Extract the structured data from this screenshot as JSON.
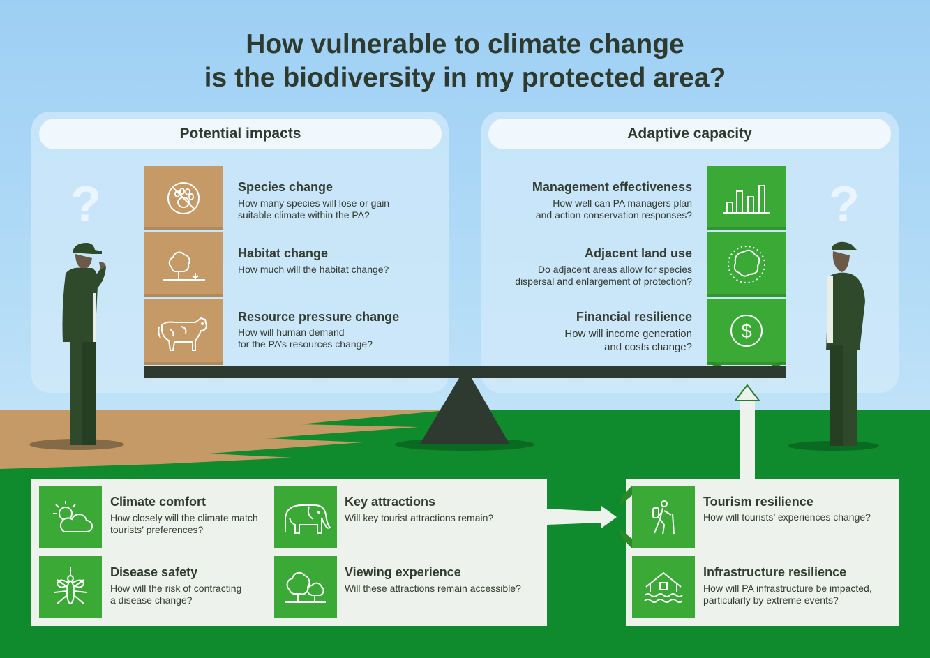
{
  "title": {
    "line1": "How vulnerable to climate change",
    "line2": "is the biodiversity in my protected area?"
  },
  "left_panel": {
    "heading": "Potential impacts",
    "items": [
      {
        "icon": "paw-prohibited-icon",
        "title": "Species change",
        "text1": "How many species will lose or gain",
        "text2": "suitable climate within the PA?"
      },
      {
        "icon": "tree-icon",
        "title": "Habitat change",
        "text1": "How much will the habitat change?",
        "text2": ""
      },
      {
        "icon": "cow-icon",
        "title": "Resource pressure change",
        "text1": "How will human demand",
        "text2": "for the PA’s resources change?"
      }
    ]
  },
  "right_panel": {
    "heading": "Adaptive capacity",
    "items": [
      {
        "icon": "bar-chart-icon",
        "title": "Management effectiveness",
        "text1": "How well can PA managers plan",
        "text2": "and action conservation responses?"
      },
      {
        "icon": "boundary-circle-icon",
        "title": "Adjacent land use",
        "text1": "Do adjacent areas allow for species",
        "text2": "dispersal and enlargement of protection?"
      },
      {
        "icon": "dollar-icon",
        "title": "Financial resilience",
        "text1": "How will income generation",
        "text2": "and costs change?"
      }
    ]
  },
  "question_marks": {
    "left": "?",
    "right": "?"
  },
  "tourism_panel": {
    "items": [
      {
        "icon": "sun-cloud-icon",
        "title": "Climate comfort",
        "text1": "How closely will the climate match",
        "text2": "tourists’ preferences?"
      },
      {
        "icon": "elephant-icon",
        "title": "Key attractions",
        "text1": "Will key tourist attractions remain?",
        "text2": ""
      },
      {
        "icon": "mosquito-icon",
        "title": "Disease safety",
        "text1": "How will the risk of contracting",
        "text2": "a disease change?"
      },
      {
        "icon": "trees-icon",
        "title": "Viewing experience",
        "text1": "Will these attractions remain accessible?",
        "text2": ""
      }
    ]
  },
  "resilience_panel": {
    "items": [
      {
        "icon": "hiker-icon",
        "title": "Tourism resilience",
        "text1": "How will tourists’ experiences change?",
        "text2": ""
      },
      {
        "icon": "flooded-house-icon",
        "title": "Infrastructure resilience",
        "text1": "How will PA infrastructure be impacted,",
        "text2": "particularly by extreme events?"
      }
    ]
  },
  "colors": {
    "sky": "#9dcff4",
    "green": "#3aa935",
    "grass": "#0f8a2c",
    "brown": "#c69a66",
    "dark": "#2f3a2e"
  }
}
